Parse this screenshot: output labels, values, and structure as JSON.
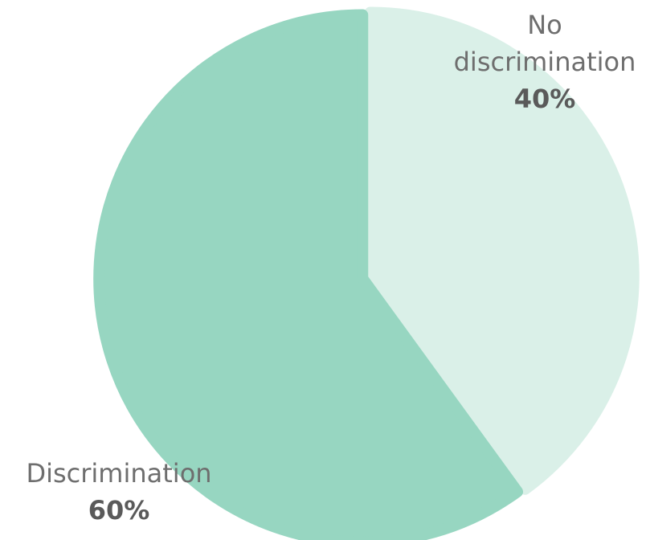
{
  "chart_data": {
    "type": "pie",
    "categories": [
      "No discrimination",
      "Discrimination"
    ],
    "values": [
      40,
      60
    ],
    "value_labels": [
      "40%",
      "60%"
    ],
    "label_lines": [
      [
        "No",
        "discrimination"
      ],
      [
        "Discrimination"
      ]
    ],
    "colors": [
      "#daf0e8",
      "#97d6c1"
    ],
    "start_angle": "top, clockwise",
    "legend": "none"
  }
}
